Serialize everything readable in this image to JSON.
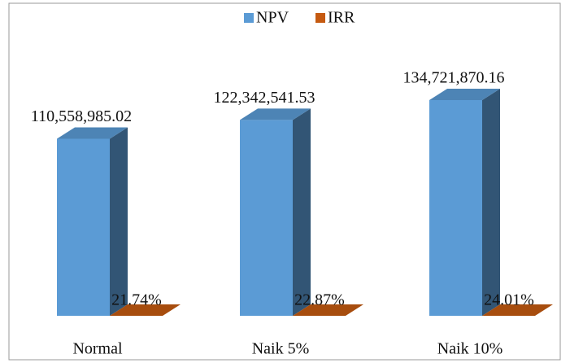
{
  "chart_data": {
    "type": "bar3d",
    "categories": [
      "Normal",
      "Naik 5%",
      "Naik 10%"
    ],
    "series": [
      {
        "name": "NPV",
        "color": "#5b9bd5",
        "values": [
          110558985.02,
          122342541.53,
          134721870.16
        ],
        "value_labels": [
          "110,558,985.02",
          "122,342,541.53",
          "134,721,870.16"
        ]
      },
      {
        "name": "IRR",
        "color": "#c55a11",
        "values": [
          21.74,
          22.87,
          24.01
        ],
        "value_labels": [
          "21.74%",
          "22.87%",
          "24.01%"
        ]
      }
    ],
    "legend": "top"
  }
}
